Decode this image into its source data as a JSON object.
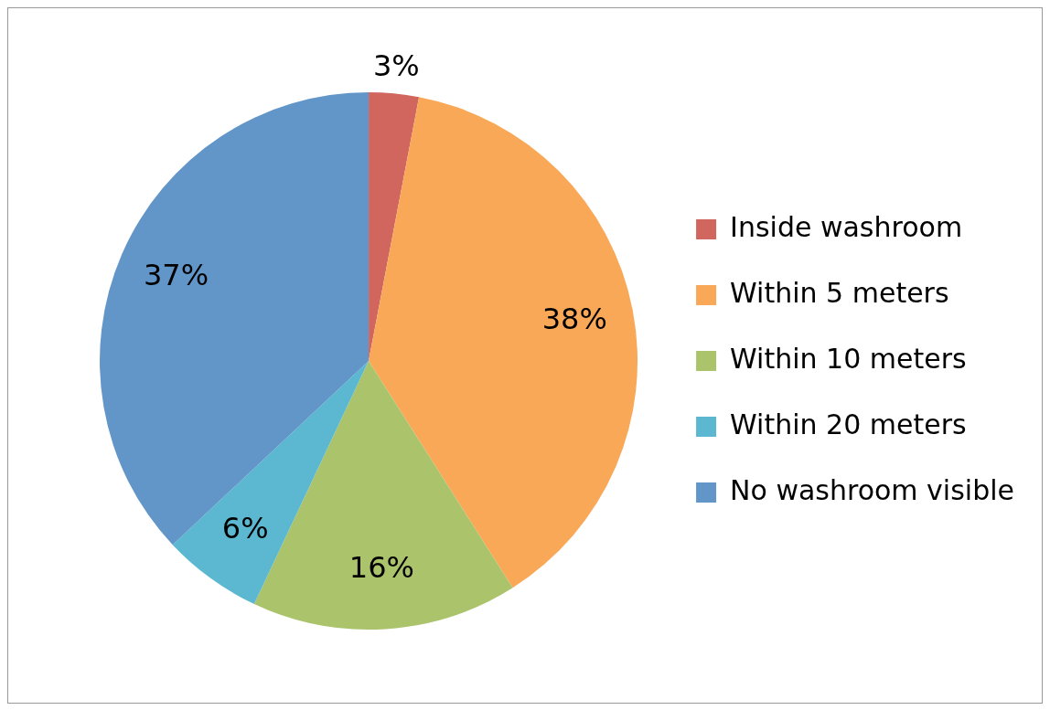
{
  "chart_data": {
    "type": "pie",
    "categories": [
      "Inside washroom",
      "Within 5 meters",
      "Within 10 meters",
      "Within 20 meters",
      "No washroom visible"
    ],
    "values": [
      3,
      38,
      16,
      6,
      37
    ],
    "colors": [
      "#d0665e",
      "#f9a857",
      "#abc46c",
      "#5bb8d0",
      "#6296c9"
    ],
    "value_labels": [
      "3%",
      "38%",
      "16%",
      "6%",
      "37%"
    ],
    "legend": "right"
  }
}
